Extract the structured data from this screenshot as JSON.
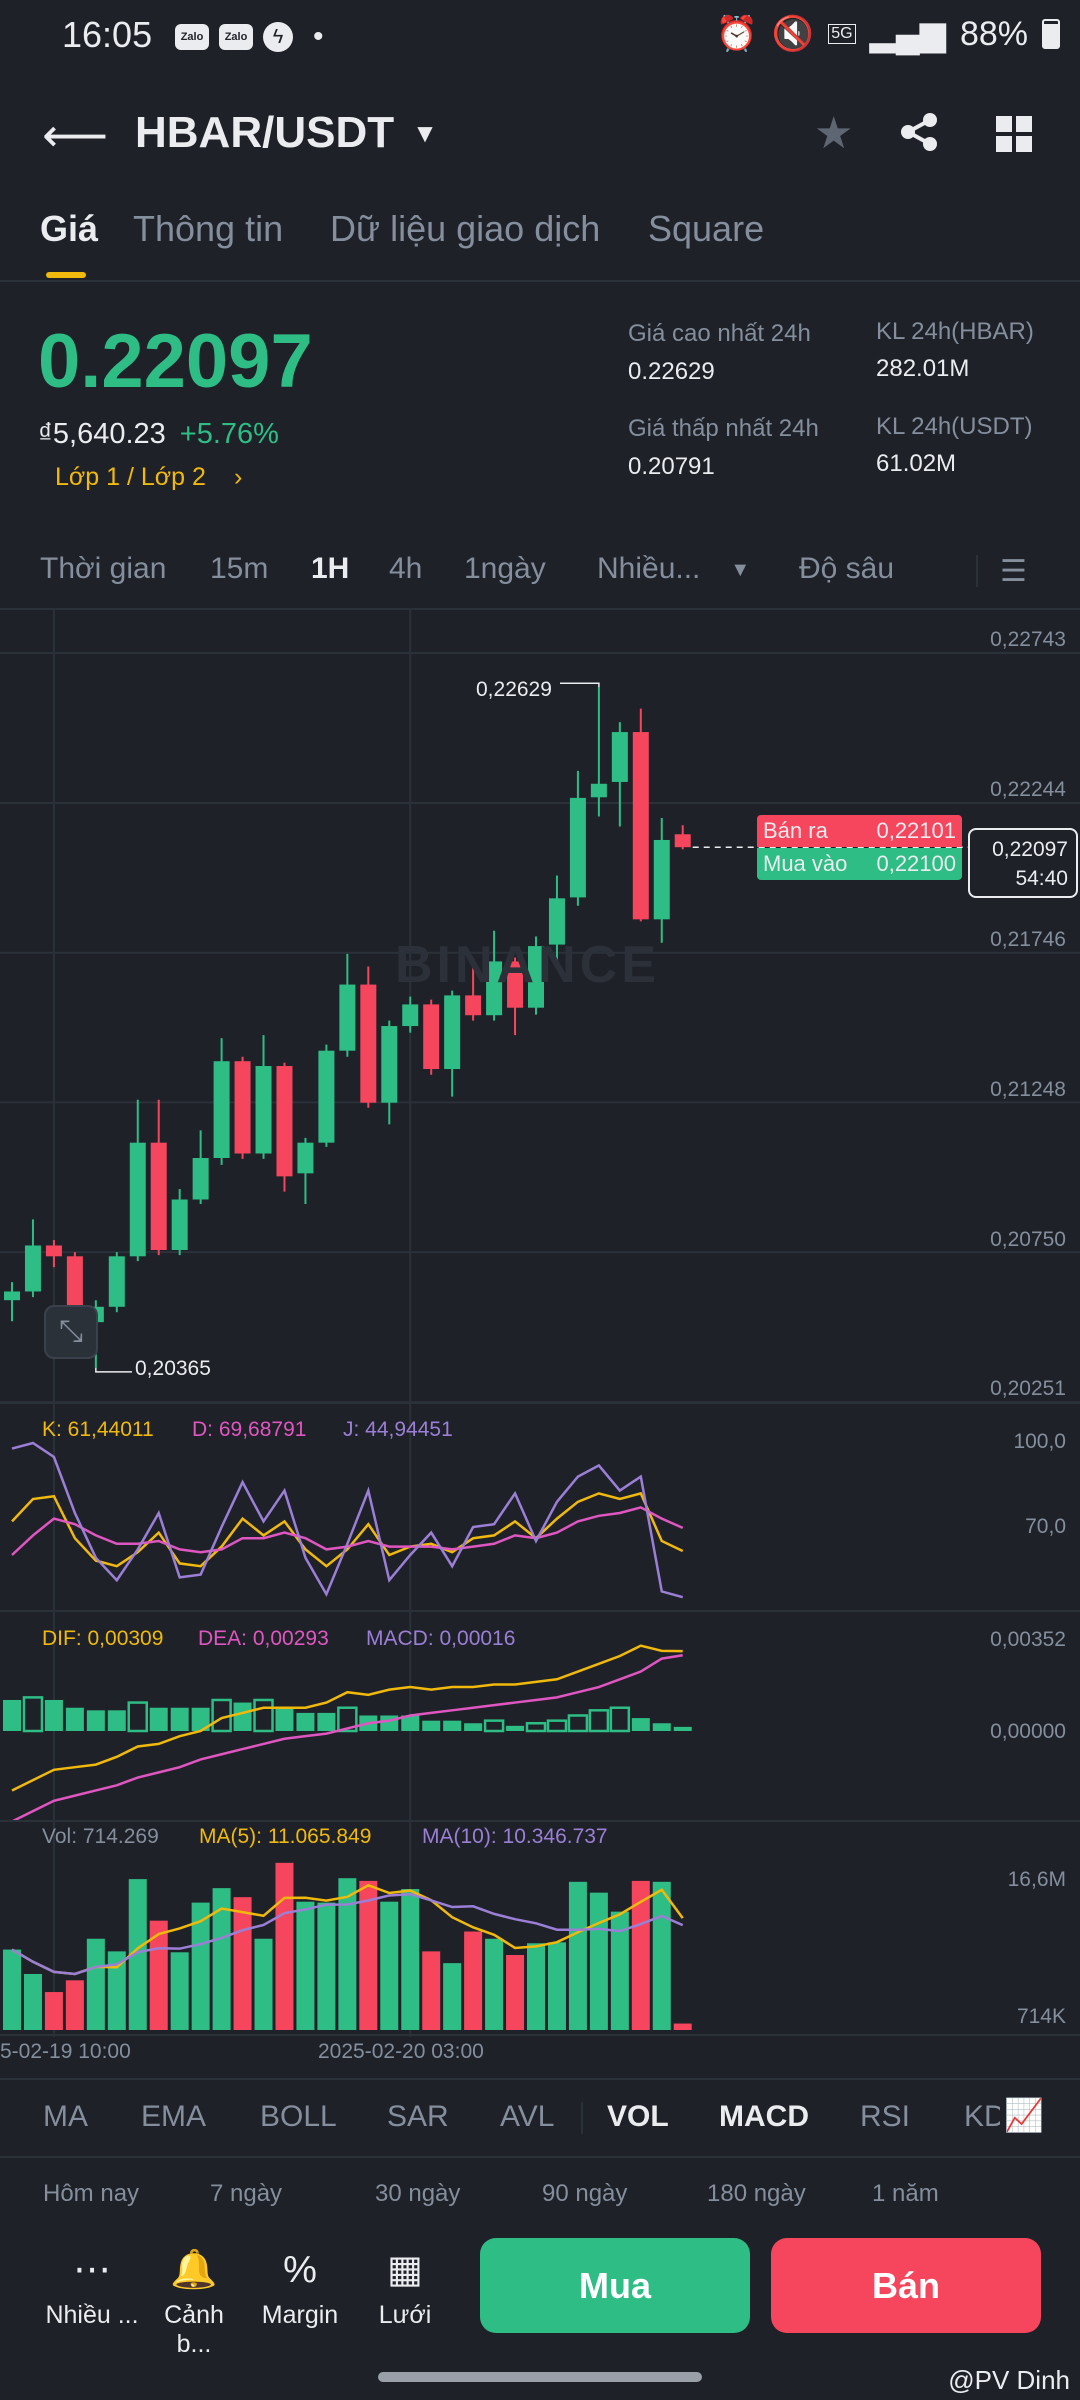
{
  "status_bar": {
    "time": "16:05",
    "notif_icons": [
      "Zalo",
      "Zalo",
      "messenger-icon"
    ],
    "dot": "•",
    "network": "5G",
    "battery": "88%"
  },
  "header": {
    "title": "HBAR/USDT"
  },
  "tabs": [
    {
      "label": "Giá",
      "active": true
    },
    {
      "label": "Thông tin"
    },
    {
      "label": "Dữ liệu giao dịch"
    },
    {
      "label": "Square"
    }
  ],
  "price": {
    "last": "0.22097",
    "fiat": "₫5,640.23",
    "change": "+5.76%",
    "layer_link": "Lớp 1 / Lớp 2"
  },
  "stats": {
    "high_label": "Giá cao nhất 24h",
    "high": "0.22629",
    "low_label": "Giá thấp nhất 24h",
    "low": "0.20791",
    "vol_base_label": "KL 24h(HBAR)",
    "vol_base": "282.01M",
    "vol_quote_label": "KL 24h(USDT)",
    "vol_quote": "61.02M"
  },
  "intervals": {
    "items": [
      "Thời gian",
      "15m",
      "1H",
      "4h",
      "1ngày",
      "Nhiều..."
    ],
    "active": "1H",
    "depth": "Độ sâu"
  },
  "chart": {
    "watermark": "BINANCE",
    "price_axis": [
      "0,22743",
      "0,22244",
      "0,21746",
      "0,21248",
      "0,20750",
      "0,20251"
    ],
    "max_label": "0,22629",
    "min_label": "0,20365",
    "ask_label": "Bán ra",
    "ask": "0,22101",
    "bid_label": "Mua vào",
    "bid": "0,22100",
    "current_price": "0,22097",
    "countdown": "54:40",
    "kdj": {
      "k": "K: 61,44011",
      "d": "D: 69,68791",
      "j": "J: 44,94451",
      "axis": [
        "100,0",
        "70,0"
      ]
    },
    "macd": {
      "dif": "DIF: 0,00309",
      "dea": "DEA: 0,00293",
      "macd": "MACD: 0,00016",
      "axis": [
        "0,00352",
        "0,00000"
      ]
    },
    "vol": {
      "vol": "Vol: 714.269",
      "ma5": "MA(5): 11.065.849",
      "ma10": "MA(10): 10.346.737",
      "axis": [
        "16,6M",
        "714K"
      ]
    },
    "dates": [
      "5-02-19 10:00",
      "2025-02-20 03:00"
    ]
  },
  "indicator_tabs": {
    "items": [
      "MA",
      "EMA",
      "BOLL",
      "SAR",
      "AVL",
      "VOL",
      "MACD",
      "RSI",
      "KDJ"
    ],
    "active": [
      "VOL",
      "MACD"
    ]
  },
  "ranges": [
    "Hôm nay",
    "7 ngày",
    "30 ngày",
    "90 ngày",
    "180 ngày",
    "1 năm"
  ],
  "actions": [
    {
      "label": "Nhiều ...",
      "icon": "more-icon"
    },
    {
      "label": "Cảnh b...",
      "icon": "bell-icon"
    },
    {
      "label": "Margin",
      "icon": "margin-icon"
    },
    {
      "label": "Lưới",
      "icon": "grid-bot-icon"
    }
  ],
  "buy_label": "Mua",
  "sell_label": "Bán",
  "watermark_user": "@PV Dinh",
  "colors": {
    "up": "#2ebd85",
    "down": "#f6465d",
    "accent": "#f0b90b",
    "k": "#f0b90b",
    "d": "#e056c1",
    "j": "#9b7fd6",
    "bg": "#1e2128"
  },
  "chart_data": [
    {
      "type": "candlestick",
      "ylim": [
        0.20251,
        0.22743
      ],
      "x_ticks": [
        "5-02-19 10:00",
        "2025-02-20 03:00"
      ],
      "ohlc": [
        [
          0.2059,
          0.2065,
          0.2052,
          0.20619
        ],
        [
          0.20619,
          0.20859,
          0.206,
          0.20772
        ],
        [
          0.20772,
          0.2079,
          0.207,
          0.20736
        ],
        [
          0.20736,
          0.2075,
          0.2044,
          0.20517
        ],
        [
          0.20517,
          0.2059,
          0.20365,
          0.20568
        ],
        [
          0.20568,
          0.2075,
          0.2055,
          0.20736
        ],
        [
          0.20736,
          0.21257,
          0.2072,
          0.21114
        ],
        [
          0.21114,
          0.21257,
          0.2074,
          0.20757
        ],
        [
          0.20757,
          0.2096,
          0.2074,
          0.20925
        ],
        [
          0.20925,
          0.21155,
          0.2091,
          0.21063
        ],
        [
          0.21063,
          0.21462,
          0.2104,
          0.21385
        ],
        [
          0.21385,
          0.214,
          0.2106,
          0.21078
        ],
        [
          0.21078,
          0.21472,
          0.2106,
          0.21369
        ],
        [
          0.21369,
          0.2138,
          0.20951,
          0.21002
        ],
        [
          0.21012,
          0.2113,
          0.2091,
          0.21114
        ],
        [
          0.21114,
          0.2144,
          0.211,
          0.2142
        ],
        [
          0.2142,
          0.21742,
          0.214,
          0.2164
        ],
        [
          0.2164,
          0.217,
          0.2123,
          0.21247
        ],
        [
          0.21247,
          0.2152,
          0.21175,
          0.21502
        ],
        [
          0.21502,
          0.216,
          0.2148,
          0.21574
        ],
        [
          0.21574,
          0.2159,
          0.2134,
          0.21359
        ],
        [
          0.21359,
          0.2162,
          0.21267,
          0.21604
        ],
        [
          0.21604,
          0.21727,
          0.2152,
          0.21538
        ],
        [
          0.21538,
          0.21819,
          0.2152,
          0.21717
        ],
        [
          0.21717,
          0.2173,
          0.21472,
          0.21563
        ],
        [
          0.21563,
          0.218,
          0.2154,
          0.21768
        ],
        [
          0.21773,
          0.22003,
          0.21695,
          0.21927
        ],
        [
          0.2193,
          0.22351,
          0.21902,
          0.22261
        ],
        [
          0.22263,
          0.22629,
          0.22199,
          0.22308
        ],
        [
          0.22314,
          0.22513,
          0.22166,
          0.2248
        ],
        [
          0.2248,
          0.22558,
          0.2185,
          0.21857
        ],
        [
          0.21857,
          0.22194,
          0.21779,
          0.22121
        ],
        [
          0.2214,
          0.2217,
          0.2209,
          0.22097
        ]
      ]
    },
    {
      "type": "line",
      "name": "KDJ",
      "series": [
        {
          "name": "K",
          "values": [
            72,
            80,
            81,
            66,
            58,
            56,
            61,
            68,
            57,
            56,
            63,
            73,
            67,
            72,
            62,
            56,
            62,
            71,
            60,
            63,
            64,
            61,
            66,
            67,
            72,
            66,
            73,
            79,
            82,
            80,
            82,
            65,
            61.44
          ]
        },
        {
          "name": "D",
          "values": [
            60,
            67,
            73,
            71,
            67,
            64,
            64,
            65,
            62,
            61,
            62,
            66,
            66,
            68,
            66,
            62,
            63,
            65,
            63,
            63,
            63,
            62,
            63,
            64,
            67,
            66,
            68,
            72,
            74,
            75,
            77,
            73,
            69.69
          ]
        },
        {
          "name": "J",
          "values": [
            98,
            100,
            95,
            75,
            59,
            51,
            62,
            75,
            52,
            53,
            70,
            86,
            72,
            83,
            59,
            46,
            64,
            83,
            51,
            60,
            68,
            56,
            70,
            71,
            82,
            65,
            79,
            88,
            92,
            83,
            88,
            47,
            44.94
          ]
        }
      ]
    },
    {
      "type": "line",
      "name": "MACD",
      "series": [
        {
          "name": "DIF",
          "values": [
            -0.0023,
            -0.0019,
            -0.0015,
            -0.0014,
            -0.0013,
            -0.001,
            -0.0006,
            -0.0005,
            -0.0002,
            0.0,
            0.0005,
            0.0007,
            0.0009,
            0.0009,
            0.0009,
            0.0011,
            0.0015,
            0.0014,
            0.0016,
            0.0017,
            0.0016,
            0.0017,
            0.0017,
            0.0018,
            0.0018,
            0.0019,
            0.002,
            0.0023,
            0.0026,
            0.0029,
            0.0033,
            0.0031,
            0.00309
          ]
        },
        {
          "name": "DEA",
          "values": [
            -0.0035,
            -0.0031,
            -0.0027,
            -0.0025,
            -0.0023,
            -0.0021,
            -0.0018,
            -0.0016,
            -0.0014,
            -0.0011,
            -0.0009,
            -0.0007,
            -0.0005,
            -0.0003,
            -0.0002,
            -0.0001,
            0.0001,
            0.0003,
            0.0004,
            0.0006,
            0.0007,
            0.0008,
            0.0009,
            0.001,
            0.0011,
            0.0012,
            0.0013,
            0.0015,
            0.0017,
            0.002,
            0.0023,
            0.0028,
            0.00293
          ]
        },
        {
          "name": "MACD",
          "values": [
            0.0012,
            0.0013,
            0.0012,
            0.0009,
            0.0008,
            0.0008,
            0.0011,
            0.0009,
            0.0009,
            0.0009,
            0.0012,
            0.0011,
            0.0012,
            0.0009,
            0.0007,
            0.0007,
            0.0009,
            0.0006,
            0.0006,
            0.0006,
            0.0004,
            0.0004,
            0.0003,
            0.0004,
            0.0002,
            0.0003,
            0.0004,
            0.0006,
            0.0008,
            0.0009,
            0.0005,
            0.0003,
            0.00016
          ]
        }
      ]
    },
    {
      "type": "bar",
      "name": "Vol",
      "values": [
        8900000.0,
        6200000.0,
        4200000.0,
        5500000.0,
        10100000.0,
        8700000.0,
        16700000.0,
        12100000.0,
        8600000.0,
        14100000.0,
        15700000.0,
        14700000.0,
        10100000.0,
        18500000.0,
        14200000.0,
        14100000.0,
        16800000.0,
        16500000.0,
        14200000.0,
        15600000.0,
        8700000.0,
        7400000.0,
        10900000.0,
        10100000.0,
        8300000.0,
        9600000.0,
        9700000.0,
        16400000.0,
        15200000.0,
        13100000.0,
        16500000.0,
        16400000.0,
        714269
      ]
    }
  ]
}
